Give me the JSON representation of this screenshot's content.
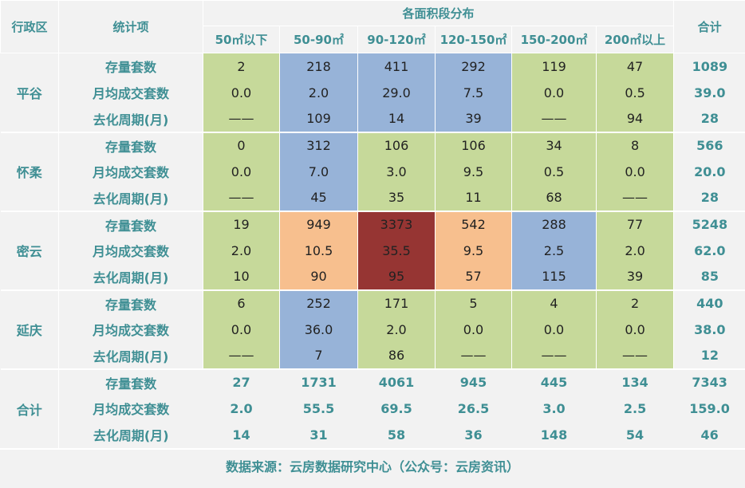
{
  "header": {
    "district_label": "行政区",
    "stat_label": "统计项",
    "distribution_label": "各面积段分布",
    "total_label": "合计",
    "area_bands": [
      "50㎡以下",
      "50-90㎡",
      "90-120㎡",
      "120-150㎡",
      "150-200㎡",
      "200㎡以上"
    ]
  },
  "districts": [
    {
      "name": "平谷",
      "rows": [
        {
          "label": "存量套数",
          "values": [
            "2",
            "218",
            "411",
            "292",
            "119",
            "47"
          ],
          "total": "1089"
        },
        {
          "label": "月均成交套数",
          "values": [
            "0.0",
            "2.0",
            "29.0",
            "7.5",
            "0.0",
            "0.5"
          ],
          "total": "39.0"
        },
        {
          "label": "去化周期(月)",
          "values": [
            "——",
            "109",
            "14",
            "39",
            "——",
            "94"
          ],
          "total": "28"
        }
      ],
      "colors": [
        "#c6d99a",
        "#97b3d8",
        "#97b3d8",
        "#97b3d8",
        "#c6d99a",
        "#c6d99a"
      ]
    },
    {
      "name": "怀柔",
      "rows": [
        {
          "label": "存量套数",
          "values": [
            "0",
            "312",
            "106",
            "106",
            "34",
            "8"
          ],
          "total": "566"
        },
        {
          "label": "月均成交套数",
          "values": [
            "0.0",
            "7.0",
            "3.0",
            "9.5",
            "0.5",
            "0.0"
          ],
          "total": "20.0"
        },
        {
          "label": "去化周期(月)",
          "values": [
            "——",
            "45",
            "35",
            "11",
            "68",
            "——"
          ],
          "total": "28"
        }
      ],
      "colors": [
        "#c6d99a",
        "#97b3d8",
        "#c6d99a",
        "#c6d99a",
        "#c6d99a",
        "#c6d99a"
      ]
    },
    {
      "name": "密云",
      "rows": [
        {
          "label": "存量套数",
          "values": [
            "19",
            "949",
            "3373",
            "542",
            "288",
            "77"
          ],
          "total": "5248"
        },
        {
          "label": "月均成交套数",
          "values": [
            "2.0",
            "10.5",
            "35.5",
            "9.5",
            "2.5",
            "2.0"
          ],
          "total": "62.0"
        },
        {
          "label": "去化周期(月)",
          "values": [
            "10",
            "90",
            "95",
            "57",
            "115",
            "39"
          ],
          "total": "85"
        }
      ],
      "colors": [
        "#c6d99a",
        "#f7bf8e",
        "#963533",
        "#f7bf8e",
        "#97b3d8",
        "#c6d99a"
      ]
    },
    {
      "name": "延庆",
      "rows": [
        {
          "label": "存量套数",
          "values": [
            "6",
            "252",
            "171",
            "5",
            "4",
            "2"
          ],
          "total": "440"
        },
        {
          "label": "月均成交套数",
          "values": [
            "0.0",
            "36.0",
            "2.0",
            "0.0",
            "0.0",
            "0.0"
          ],
          "total": "38.0"
        },
        {
          "label": "去化周期(月)",
          "values": [
            "——",
            "7",
            "86",
            "——",
            "——",
            "——"
          ],
          "total": "12"
        }
      ],
      "colors": [
        "#c6d99a",
        "#97b3d8",
        "#c6d99a",
        "#c6d99a",
        "#c6d99a",
        "#c6d99a"
      ]
    }
  ],
  "summary": {
    "name": "合计",
    "rows": [
      {
        "label": "存量套数",
        "values": [
          "27",
          "1731",
          "4061",
          "945",
          "445",
          "134"
        ],
        "total": "7343"
      },
      {
        "label": "月均成交套数",
        "values": [
          "2.0",
          "55.5",
          "69.5",
          "26.5",
          "3.0",
          "2.5"
        ],
        "total": "159.0"
      },
      {
        "label": "去化周期(月)",
        "values": [
          "14",
          "31",
          "58",
          "36",
          "148",
          "54"
        ],
        "total": "46"
      }
    ]
  },
  "footer": {
    "source": "数据来源：云房数据研究中心（公众号：云房资讯）"
  }
}
